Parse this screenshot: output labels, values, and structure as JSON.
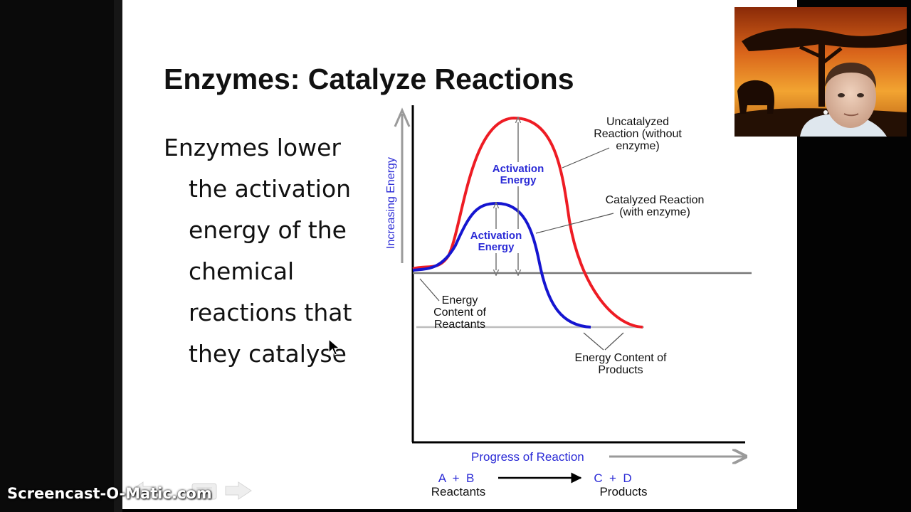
{
  "slide": {
    "title": "Enzymes: Catalyze Reactions",
    "body_lines": [
      "Enzymes lower",
      "the activation",
      "energy of the",
      "chemical",
      "reactions that",
      "they catalyse"
    ]
  },
  "diagram": {
    "y_axis_label": "Increasing Energy",
    "x_axis_label": "Progress of Reaction",
    "uncatalyzed_label": [
      "Uncatalyzed",
      "Reaction (without",
      "enzyme)"
    ],
    "catalyzed_label": [
      "Catalyzed Reaction",
      "(with enzyme)"
    ],
    "activation_energy_label": [
      "Activation",
      "Energy"
    ],
    "reactants_energy_label": [
      "Energy",
      "Content of",
      "Reactants"
    ],
    "products_energy_label": [
      "Energy Content of",
      "Products"
    ],
    "equation_left": "A  +  B",
    "reactants_word": "Reactants",
    "equation_right": "C  +  D",
    "products_word": "Products",
    "colors": {
      "uncatalyzed": "#ee1c24",
      "catalyzed": "#1515d0",
      "label_blue": "#2b2bd6",
      "axis": "#000000",
      "arrow_gray": "#9a9a9a"
    }
  },
  "watermark": "Screencast-O-Matic.com",
  "slide_nav_icons": [
    "arrow-left-icon",
    "slide-menu-icon",
    "arrow-right-icon"
  ]
}
